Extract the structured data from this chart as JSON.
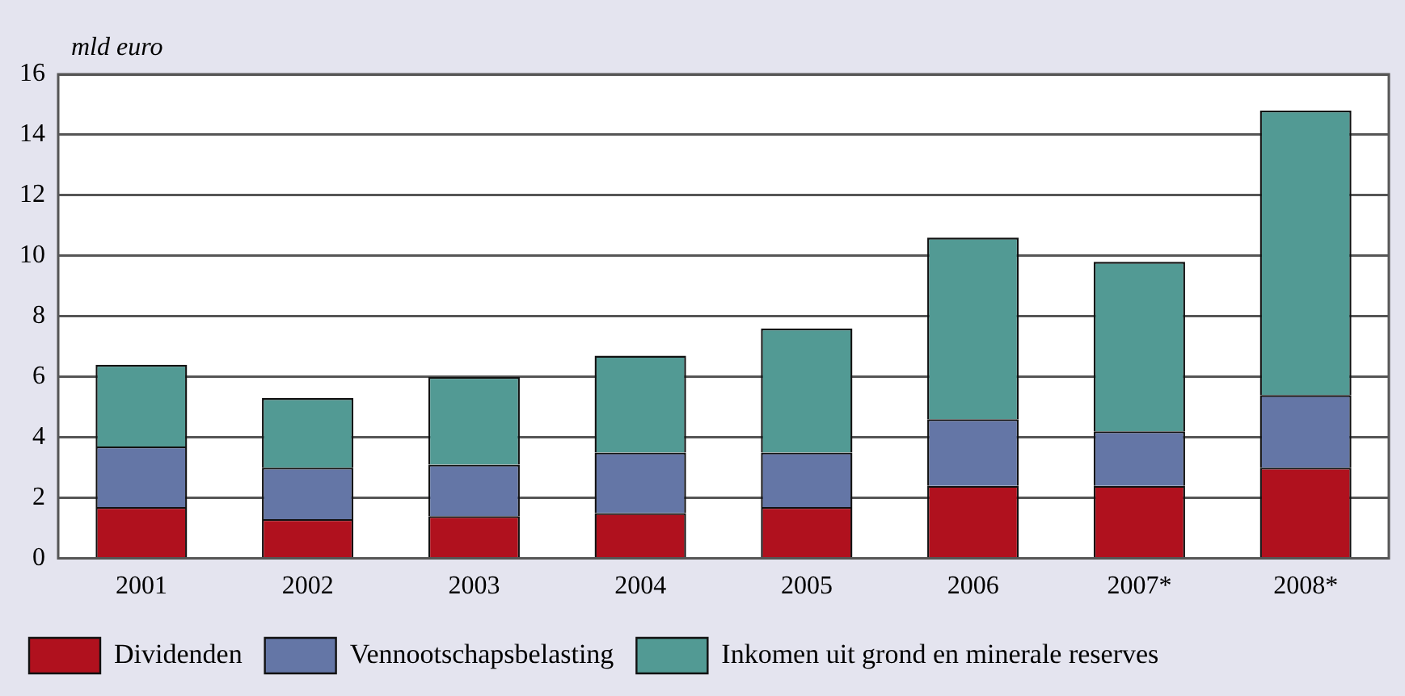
{
  "chart_data": {
    "type": "bar",
    "stacked": true,
    "ylabel": "mld euro",
    "categories": [
      "2001",
      "2002",
      "2003",
      "2004",
      "2005",
      "2006",
      "2007*",
      "2008*"
    ],
    "series": [
      {
        "name": "Dividenden",
        "color": "#b0111e",
        "values": [
          1.7,
          1.3,
          1.4,
          1.5,
          1.7,
          2.4,
          2.4,
          3.0
        ]
      },
      {
        "name": "Vennootschapsbelasting",
        "color": "#6476a6",
        "values": [
          2.0,
          1.7,
          1.7,
          2.0,
          1.8,
          2.2,
          1.8,
          2.4
        ]
      },
      {
        "name": "Inkomen uit grond en minerale reserves",
        "color": "#529a94",
        "values": [
          2.7,
          2.3,
          2.9,
          3.2,
          4.1,
          6.0,
          5.6,
          9.4
        ]
      }
    ],
    "ylim": [
      0,
      16
    ],
    "yticks": [
      0,
      2,
      4,
      6,
      8,
      10,
      12,
      14,
      16
    ],
    "grid": "y",
    "legend": "bottom"
  }
}
